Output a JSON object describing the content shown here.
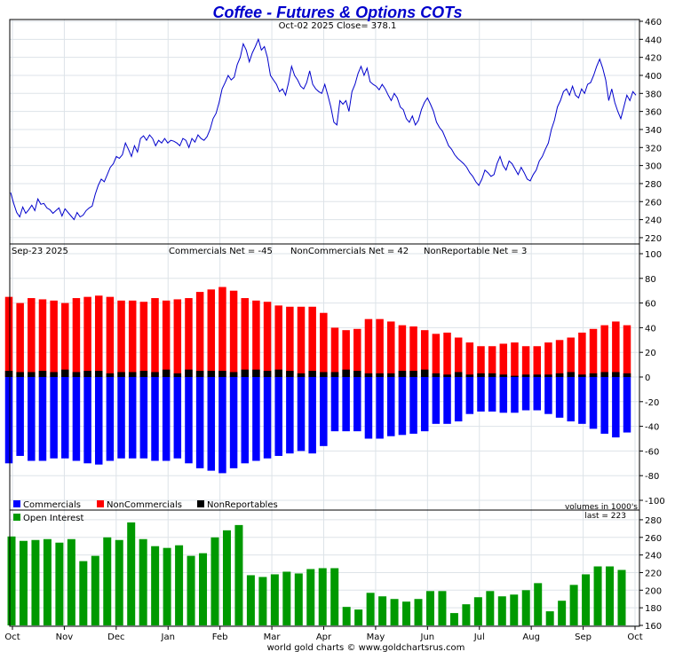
{
  "chart_data": {
    "title": "Coffee - Futures & Options COTs",
    "footer": "world gold charts © www.goldchartsrus.com",
    "x_labels": [
      "Oct",
      "Nov",
      "Dec",
      "Jan",
      "Feb",
      "Mar",
      "Apr",
      "May",
      "Jun",
      "Jul",
      "Aug",
      "Sep",
      "Oct"
    ],
    "colors": {
      "title": "#0000cc",
      "price_line": "#0000cc",
      "commercials": "#0000ff",
      "noncommercials": "#ff0000",
      "nonreportables": "#000000",
      "open_interest": "#009900",
      "grid": "#dde3e8",
      "frame": "#000000"
    },
    "price_panel": {
      "type": "line",
      "subtitle": "Oct-02  2025   Close= 378.1",
      "ylim": [
        215,
        460
      ],
      "yticks": [
        220,
        240,
        260,
        280,
        300,
        320,
        340,
        360,
        380,
        400,
        420,
        440,
        460
      ],
      "values": [
        270,
        258,
        248,
        243,
        254,
        247,
        251,
        256,
        250,
        263,
        257,
        258,
        253,
        251,
        247,
        250,
        253,
        244,
        252,
        248,
        244,
        240,
        248,
        243,
        245,
        250,
        253,
        255,
        268,
        278,
        285,
        282,
        290,
        298,
        302,
        310,
        308,
        312,
        325,
        318,
        310,
        322,
        315,
        330,
        333,
        328,
        334,
        330,
        322,
        328,
        325,
        330,
        325,
        328,
        327,
        325,
        322,
        330,
        328,
        320,
        330,
        326,
        334,
        330,
        328,
        332,
        340,
        352,
        358,
        370,
        385,
        392,
        400,
        395,
        398,
        412,
        420,
        435,
        428,
        415,
        425,
        432,
        440,
        428,
        432,
        420,
        400,
        395,
        390,
        382,
        385,
        378,
        392,
        410,
        400,
        395,
        388,
        385,
        392,
        405,
        390,
        385,
        382,
        380,
        390,
        378,
        365,
        348,
        345,
        372,
        368,
        372,
        360,
        382,
        390,
        402,
        410,
        400,
        408,
        393,
        390,
        388,
        384,
        390,
        385,
        378,
        372,
        380,
        375,
        365,
        362,
        352,
        348,
        355,
        345,
        350,
        362,
        370,
        375,
        368,
        360,
        348,
        342,
        338,
        330,
        322,
        318,
        312,
        308,
        305,
        302,
        298,
        292,
        288,
        282,
        278,
        285,
        295,
        292,
        288,
        290,
        302,
        310,
        300,
        295,
        305,
        302,
        296,
        290,
        298,
        292,
        285,
        283,
        290,
        295,
        305,
        310,
        318,
        325,
        340,
        350,
        365,
        372,
        382,
        385,
        378,
        388,
        378,
        375,
        385,
        380,
        390,
        392,
        400,
        410,
        418,
        408,
        395,
        372,
        385,
        370,
        360,
        352,
        365,
        378,
        372,
        382,
        378
      ]
    },
    "cot_panel": {
      "type": "bar",
      "date_label": "Sep-23  2025",
      "summary": {
        "commercials": "Commercials Net = -45",
        "noncommercials": "NonCommercials Net = 42",
        "nonreportables": "NonReportable Net = 3"
      },
      "ylim": [
        -100,
        100
      ],
      "yticks": [
        -100,
        -80,
        -60,
        -40,
        -20,
        0,
        20,
        40,
        60,
        80,
        100
      ],
      "series": [
        {
          "name": "Commercials",
          "values": [
            -70,
            -64,
            -68,
            -68,
            -66,
            -66,
            -68,
            -70,
            -71,
            -68,
            -66,
            -66,
            -66,
            -68,
            -68,
            -66,
            -70,
            -74,
            -76,
            -78,
            -74,
            -70,
            -68,
            -66,
            -64,
            -62,
            -60,
            -62,
            -56,
            -44,
            -44,
            -44,
            -50,
            -50,
            -48,
            -47,
            -46,
            -44,
            -38,
            -38,
            -36,
            -30,
            -28,
            -28,
            -29,
            -29,
            -27,
            -27,
            -30,
            -33,
            -36,
            -38,
            -42,
            -46,
            -49,
            -45
          ]
        },
        {
          "name": "NonCommercials",
          "values": [
            65,
            60,
            64,
            63,
            62,
            60,
            64,
            65,
            66,
            65,
            62,
            62,
            61,
            64,
            62,
            63,
            64,
            69,
            71,
            73,
            70,
            64,
            62,
            61,
            58,
            57,
            57,
            57,
            52,
            40,
            38,
            39,
            47,
            47,
            45,
            42,
            41,
            38,
            35,
            36,
            32,
            28,
            25,
            25,
            27,
            28,
            25,
            25,
            28,
            30,
            32,
            36,
            39,
            42,
            45,
            42
          ]
        },
        {
          "name": "NonReportables",
          "values": [
            5,
            4,
            4,
            5,
            4,
            6,
            4,
            5,
            5,
            3,
            4,
            4,
            5,
            4,
            6,
            3,
            6,
            5,
            5,
            5,
            4,
            6,
            6,
            5,
            6,
            5,
            3,
            5,
            4,
            4,
            6,
            5,
            3,
            3,
            3,
            5,
            5,
            6,
            3,
            2,
            4,
            2,
            3,
            3,
            2,
            1,
            2,
            2,
            2,
            3,
            4,
            2,
            3,
            4,
            4,
            3
          ]
        }
      ]
    },
    "oi_panel": {
      "type": "bar",
      "legend": "Open Interest",
      "units_note": "volumes in 1000's",
      "last_note": "last = 223",
      "ylim": [
        160,
        290
      ],
      "yticks": [
        160,
        180,
        200,
        220,
        240,
        260,
        280
      ],
      "values": [
        261,
        256,
        257,
        258,
        254,
        258,
        233,
        239,
        260,
        257,
        277,
        258,
        250,
        248,
        251,
        239,
        242,
        260,
        268,
        274,
        217,
        215,
        218,
        221,
        219,
        224,
        225,
        225,
        181,
        178,
        197,
        193,
        190,
        187,
        190,
        199,
        199,
        174,
        184,
        192,
        199,
        193,
        195,
        200,
        208,
        176,
        188,
        206,
        218,
        227,
        227,
        223
      ]
    }
  }
}
